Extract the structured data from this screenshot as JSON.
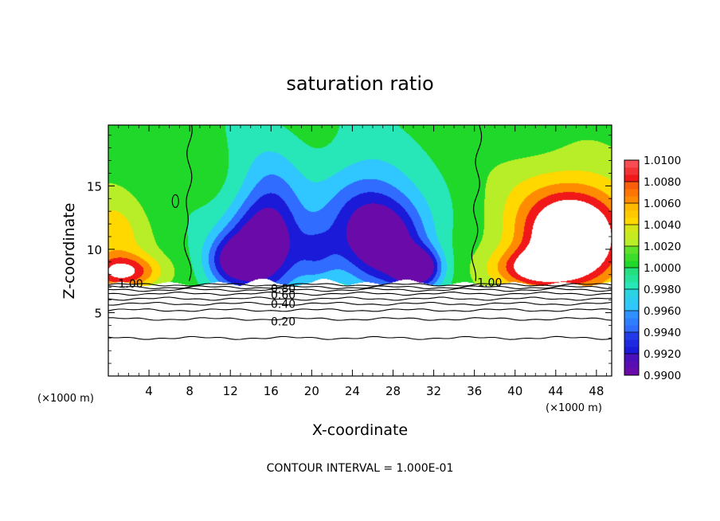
{
  "chart_data": {
    "type": "heatmap",
    "title": "saturation ratio",
    "xlabel": "X-coordinate",
    "ylabel": "Z-coordinate",
    "x_unit_left": "(×1000 m)",
    "x_unit_right": "(×1000 m)",
    "footer": "CONTOUR INTERVAL = 1.000E-01",
    "xlim": [
      0,
      49.5
    ],
    "ylim": [
      0,
      19.8
    ],
    "xticks": [
      4,
      8,
      12,
      16,
      20,
      24,
      28,
      32,
      36,
      40,
      44,
      48
    ],
    "yticks": [
      5,
      10,
      15
    ],
    "colorbar": {
      "levels": [
        0.99,
        0.992,
        0.994,
        0.996,
        0.998,
        1.0,
        1.002,
        1.004,
        1.006,
        1.008,
        1.01
      ],
      "labels": [
        "0.9900",
        "0.9920",
        "0.9940",
        "0.9960",
        "0.9980",
        "1.0000",
        "1.0020",
        "1.0040",
        "1.0060",
        "1.0080",
        "1.0100"
      ],
      "colors": [
        "#6a0aa8",
        "#1a1ad8",
        "#2f6cff",
        "#30c6ff",
        "#27e6b8",
        "#20d82a",
        "#b8ee28",
        "#ffd800",
        "#ff8c00",
        "#f01818",
        "#ff9aa8"
      ]
    },
    "contour_labels": [
      {
        "text": "1.00",
        "x": 2.2,
        "z": 7.3
      },
      {
        "text": "1.00",
        "x": 37.5,
        "z": 7.4
      },
      {
        "text": "0.80",
        "x": 17.2,
        "z": 6.9
      },
      {
        "text": "0.60",
        "x": 17.2,
        "z": 6.4
      },
      {
        "text": "0.40",
        "x": 17.2,
        "z": 5.7
      },
      {
        "text": "0.20",
        "x": 17.2,
        "z": 4.3
      }
    ],
    "field_blobs": [
      {
        "x": 0.5,
        "z": 10.5,
        "rx": 3.5,
        "rz": 4.5,
        "value": 1.0048
      },
      {
        "x": 1.5,
        "z": 8.2,
        "rx": 3.5,
        "rz": 1.3,
        "value": 1.0085
      },
      {
        "x": 45.0,
        "z": 11.5,
        "rx": 7.0,
        "rz": 5.5,
        "value": 1.0072
      },
      {
        "x": 46.0,
        "z": 11.0,
        "rx": 4.5,
        "rz": 3.2,
        "value": 1.0102
      },
      {
        "x": 42.0,
        "z": 8.5,
        "rx": 4.0,
        "rz": 1.5,
        "value": 1.0085
      },
      {
        "x": 15.0,
        "z": 10.0,
        "rx": 3.6,
        "rz": 3.5,
        "value": 0.9912
      },
      {
        "x": 16.0,
        "z": 13.0,
        "rx": 3.2,
        "rz": 5.0,
        "value": 0.9955
      },
      {
        "x": 27.5,
        "z": 10.5,
        "rx": 4.2,
        "rz": 3.5,
        "value": 0.9912
      },
      {
        "x": 25.0,
        "z": 13.0,
        "rx": 4.5,
        "rz": 4.5,
        "value": 0.995
      },
      {
        "x": 30.5,
        "z": 8.5,
        "rx": 2.2,
        "rz": 1.5,
        "value": 0.99
      },
      {
        "x": 12.0,
        "z": 9.0,
        "rx": 2.5,
        "rz": 2.0,
        "value": 0.994
      },
      {
        "x": 20.5,
        "z": 9.5,
        "rx": 2.2,
        "rz": 2.5,
        "value": 0.9962
      }
    ],
    "contour_lines_z": [
      7.2,
      7.0,
      6.8,
      6.5,
      6.1,
      5.7,
      5.2,
      4.5,
      3.0
    ]
  }
}
